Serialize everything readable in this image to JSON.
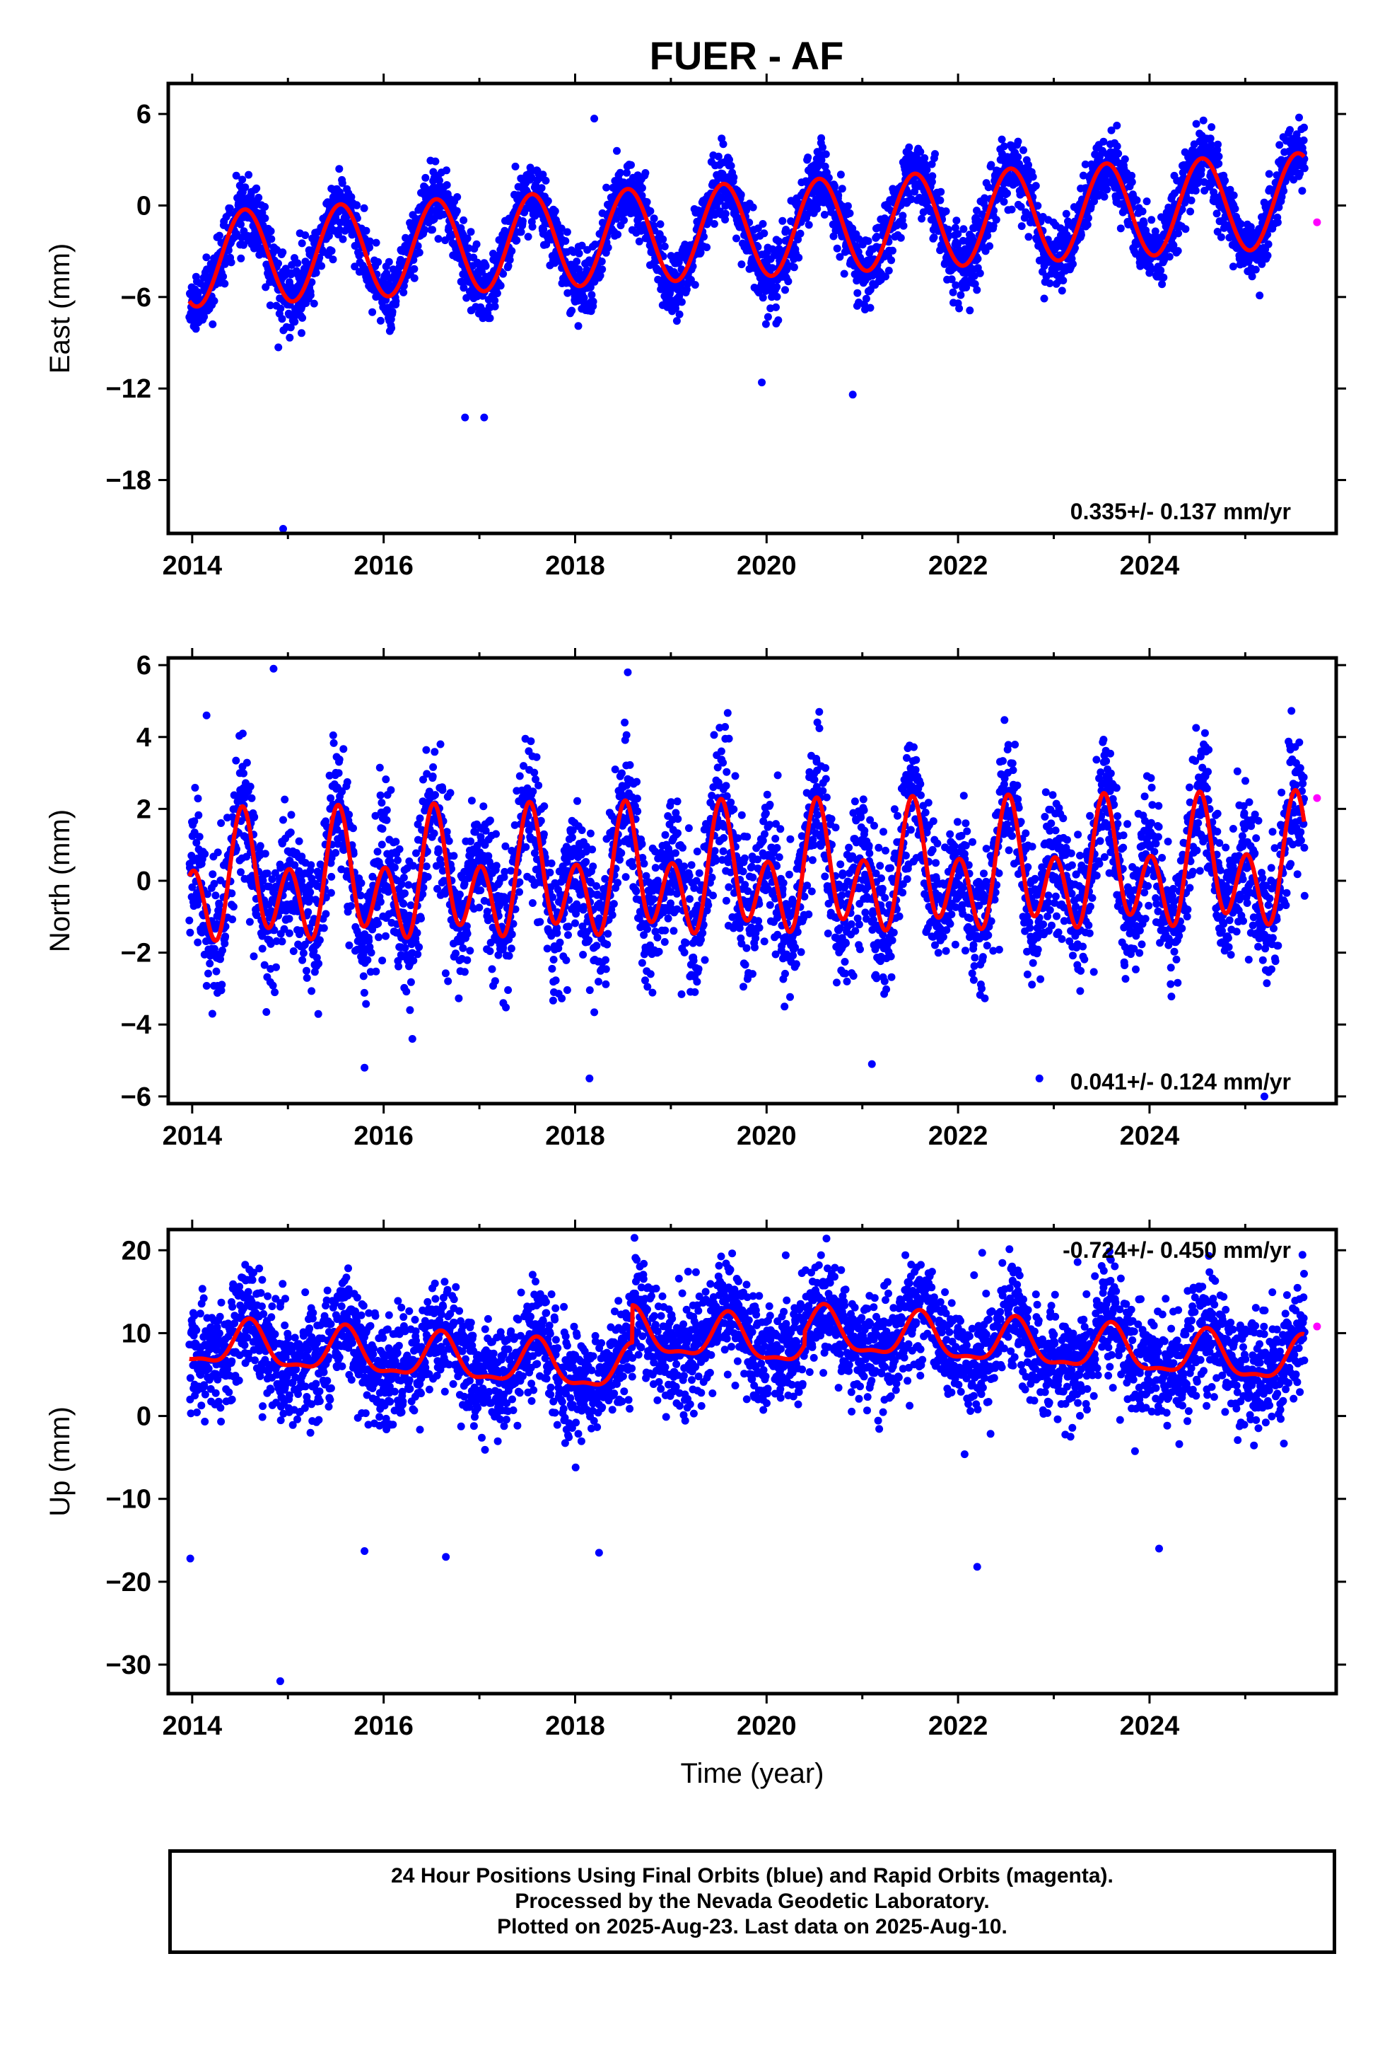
{
  "title": "FUER - AF",
  "footer": {
    "line1": "24 Hour Positions Using Final Orbits (blue) and Rapid Orbits (magenta).",
    "line2": "Processed by the Nevada Geodetic Laboratory.",
    "line3": "Plotted on 2025-Aug-23. Last data on 2025-Aug-10."
  },
  "colors": {
    "final_orbits": "#0000ff",
    "rapid_orbits": "#ff00ff",
    "model": "#ff0000",
    "frame": "#000000"
  },
  "chart_data": [
    {
      "type": "scatter",
      "ylabel": "East (mm)",
      "xlabel": "",
      "xlim": [
        2013.75,
        2025.95
      ],
      "ylim": [
        -21.5,
        8.0
      ],
      "xticks": [
        2014,
        2016,
        2018,
        2020,
        2022,
        2024
      ],
      "yticks": [
        6,
        0,
        -6,
        -12,
        -18
      ],
      "ytick_labels": [
        "6",
        "0",
        "−6",
        "−12",
        "−18"
      ],
      "xtick_labels": [
        "2014",
        "2016",
        "2018",
        "2020",
        "2022",
        "2024"
      ],
      "rate_label": "0.335+/- 0.137 mm/yr",
      "rate_label_position": "bottom-right",
      "model": {
        "offset": -1.6,
        "trend": 0.335,
        "amp1": 3.1,
        "phase1": 2014.55,
        "amp2": 0.0,
        "phase2": 2014.55,
        "steps": []
      },
      "scatter": {
        "noise": 1.1,
        "seed": 11
      },
      "outliers": [
        [
          2014.9,
          -9.3
        ],
        [
          2014.95,
          -21.2
        ],
        [
          2016.85,
          -13.9
        ],
        [
          2017.05,
          -13.9
        ],
        [
          2019.95,
          -11.6
        ],
        [
          2020.9,
          -12.4
        ],
        [
          2022.9,
          -6.1
        ],
        [
          2023.7,
          -1.5
        ],
        [
          2025.15,
          -5.9
        ],
        [
          2018.2,
          5.7
        ]
      ],
      "rapid": [
        [
          2025.75,
          -1.1
        ]
      ]
    },
    {
      "type": "scatter",
      "ylabel": "North (mm)",
      "xlabel": "",
      "xlim": [
        2013.75,
        2025.95
      ],
      "ylim": [
        -6.2,
        6.2
      ],
      "xticks": [
        2014,
        2016,
        2018,
        2020,
        2022,
        2024
      ],
      "yticks": [
        6,
        4,
        2,
        0,
        -2,
        -4,
        -6
      ],
      "ytick_labels": [
        "6",
        "4",
        "2",
        "0",
        "−2",
        "−4",
        "−6"
      ],
      "xtick_labels": [
        "2014",
        "2016",
        "2018",
        "2020",
        "2022",
        "2024"
      ],
      "rate_label": "0.041+/- 0.124 mm/yr",
      "rate_label_position": "bottom-right",
      "model": {
        "offset": 0.1,
        "trend": 0.041,
        "amp1": 0.9,
        "phase1": 2014.55,
        "amp2": 1.3,
        "phase2": 2014.52,
        "steps": []
      },
      "scatter": {
        "noise": 0.95,
        "seed": 23
      },
      "outliers": [
        [
          2014.85,
          5.9
        ],
        [
          2014.15,
          4.6
        ],
        [
          2018.55,
          5.8
        ],
        [
          2015.8,
          -5.2
        ],
        [
          2018.15,
          -5.5
        ],
        [
          2022.85,
          -5.5
        ],
        [
          2025.2,
          -6.0
        ],
        [
          2021.1,
          -5.1
        ],
        [
          2016.3,
          -4.4
        ],
        [
          2020.55,
          4.7
        ]
      ],
      "rapid": [
        [
          2025.75,
          2.3
        ]
      ]
    },
    {
      "type": "scatter",
      "ylabel": "Up (mm)",
      "xlabel": "Time (year)",
      "xlim": [
        2013.75,
        2025.95
      ],
      "ylim": [
        -33.5,
        22.5
      ],
      "xticks": [
        2014,
        2016,
        2018,
        2020,
        2022,
        2024
      ],
      "yticks": [
        20,
        10,
        0,
        -10,
        -20,
        -30
      ],
      "ytick_labels": [
        "20",
        "10",
        "0",
        "−10",
        "−20",
        "−30"
      ],
      "xtick_labels": [
        "2014",
        "2016",
        "2018",
        "2020",
        "2022",
        "2024"
      ],
      "rate_label": "-0.724+/- 0.450 mm/yr",
      "rate_label_position": "top-right",
      "model": {
        "offset": 4.5,
        "trend": -0.724,
        "amp1": 2.6,
        "phase1": 2014.6,
        "amp2": 0.9,
        "phase2": 2014.6,
        "steps": [
          [
            2018.6,
            4.5
          ],
          [
            2020.4,
            1.6
          ]
        ]
      },
      "scatter": {
        "noise": 3.2,
        "seed": 37
      },
      "outliers": [
        [
          2013.98,
          -17.2
        ],
        [
          2014.92,
          -32.0
        ],
        [
          2018.62,
          21.5
        ],
        [
          2020.2,
          19.4
        ],
        [
          2022.2,
          -18.2
        ],
        [
          2023.5,
          18.1
        ],
        [
          2014.7,
          17.8
        ],
        [
          2016.65,
          -17.0
        ],
        [
          2015.8,
          -16.3
        ],
        [
          2018.25,
          -16.5
        ],
        [
          2024.1,
          -16.0
        ]
      ],
      "rapid": [
        [
          2025.75,
          10.8
        ]
      ]
    }
  ]
}
